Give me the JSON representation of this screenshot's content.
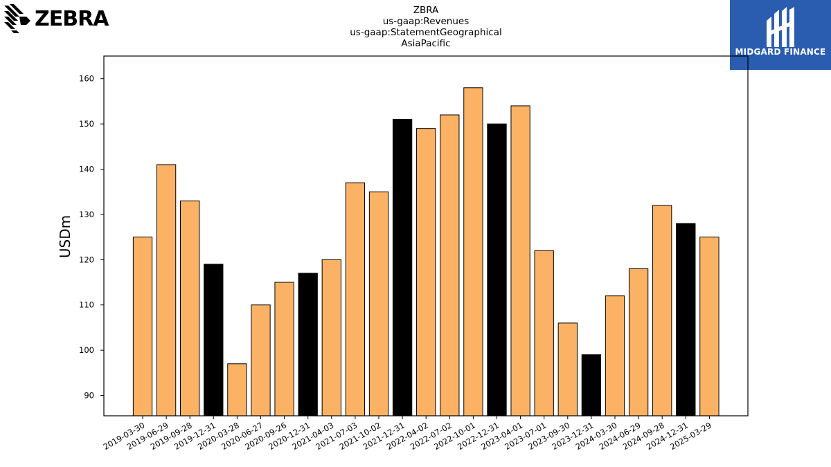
{
  "logos": {
    "left_brand": "ZEBRA",
    "right_brand": "MIDGARD FINANCE"
  },
  "title_lines": [
    "ZBRA",
    "us-gaap:Revenues",
    "us-gaap:StatementGeographical",
    "AsiaPacific"
  ],
  "colors": {
    "bar_regular": "#fbb264",
    "bar_fiscal_year_end": "#000000",
    "midgard_background": "#2a5db0"
  },
  "chart_data": {
    "type": "bar",
    "ylabel": "USDm",
    "xlabel": "",
    "ylim": [
      85.5,
      165
    ],
    "yticks": [
      90,
      100,
      110,
      120,
      130,
      140,
      150,
      160
    ],
    "categories": [
      "2019-03-30",
      "2019-06-29",
      "2019-09-28",
      "2019-12-31",
      "2020-03-28",
      "2020-06-27",
      "2020-09-26",
      "2020-12-31",
      "2021-04-03",
      "2021-07-03",
      "2021-10-02",
      "2021-12-31",
      "2022-04-02",
      "2022-07-02",
      "2022-10-01",
      "2022-12-31",
      "2023-04-01",
      "2023-07-01",
      "2023-09-30",
      "2023-12-31",
      "2024-03-30",
      "2024-06-29",
      "2024-09-28",
      "2024-12-31",
      "2025-03-29"
    ],
    "values": [
      125,
      141,
      133,
      119,
      97,
      110,
      115,
      117,
      120,
      137,
      135,
      151,
      149,
      152,
      158,
      150,
      154,
      122,
      106,
      99,
      112,
      118,
      132,
      128,
      125
    ],
    "highlight": [
      false,
      false,
      false,
      true,
      false,
      false,
      false,
      true,
      false,
      false,
      false,
      true,
      false,
      false,
      false,
      true,
      false,
      false,
      false,
      true,
      false,
      false,
      false,
      true,
      false
    ],
    "grid": false,
    "legend": "none"
  }
}
